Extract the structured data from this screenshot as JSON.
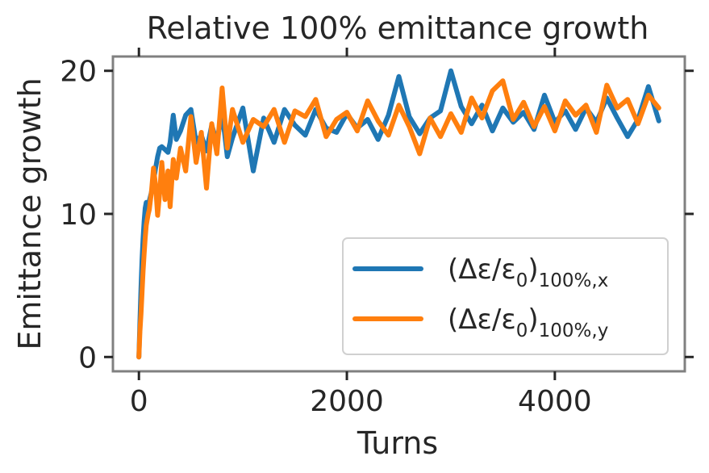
{
  "chart_data": {
    "type": "line",
    "title": "Relative 100% emittance growth",
    "xlabel": "Turns",
    "ylabel": "Emittance growth",
    "xlim": [
      -250,
      5250
    ],
    "ylim": [
      -1,
      21
    ],
    "xticks": [
      0,
      2000,
      4000
    ],
    "xtick_labels": [
      "0",
      "2000",
      "4000"
    ],
    "yticks": [
      0,
      10,
      20
    ],
    "ytick_labels": [
      "0",
      "10",
      "20"
    ],
    "grid": false,
    "legend_position": "lower-right",
    "series": [
      {
        "name": "(Δε/ε₀)100%,x",
        "label_main": "(Δε/ε",
        "label_sub0": "0",
        "label_close": ")",
        "label_sub": "100%,x",
        "color": "#1f77b4",
        "x": [
          0,
          10,
          20,
          30,
          40,
          50,
          60,
          70,
          80,
          90,
          100,
          120,
          140,
          160,
          180,
          200,
          220,
          250,
          280,
          300,
          330,
          360,
          400,
          450,
          500,
          550,
          600,
          650,
          700,
          750,
          800,
          850,
          900,
          1000,
          1100,
          1200,
          1300,
          1400,
          1500,
          1600,
          1700,
          1800,
          1900,
          2000,
          2100,
          2200,
          2300,
          2400,
          2500,
          2600,
          2700,
          2800,
          2900,
          3000,
          3100,
          3200,
          3300,
          3400,
          3500,
          3600,
          3700,
          3800,
          3900,
          4000,
          4100,
          4200,
          4300,
          4400,
          4500,
          4600,
          4700,
          4800,
          4900,
          5000
        ],
        "y": [
          0.0,
          2.5,
          4.8,
          6.8,
          8.3,
          9.5,
          10.4,
          10.8,
          10.7,
          10.6,
          10.9,
          11.5,
          12.3,
          13.2,
          14.0,
          14.6,
          14.7,
          14.5,
          14.3,
          15.0,
          16.9,
          15.2,
          15.8,
          16.9,
          17.3,
          15.0,
          15.5,
          14.4,
          16.2,
          15.0,
          17.1,
          14.0,
          15.3,
          17.4,
          13.0,
          16.7,
          15.0,
          17.3,
          16.2,
          15.5,
          17.3,
          16.0,
          15.7,
          17.0,
          16.0,
          16.6,
          15.2,
          16.9,
          19.6,
          16.8,
          15.6,
          16.7,
          17.2,
          20.0,
          17.5,
          16.3,
          17.6,
          15.8,
          17.4,
          16.4,
          17.1,
          15.9,
          18.3,
          16.4,
          17.2,
          15.9,
          17.4,
          16.4,
          18.1,
          16.7,
          15.4,
          16.6,
          18.9,
          16.5
        ]
      },
      {
        "name": "(Δε/ε₀)100%,y",
        "label_main": "(Δε/ε",
        "label_sub0": "0",
        "label_close": ")",
        "label_sub": "100%,y",
        "color": "#ff7f0e",
        "x": [
          0,
          10,
          20,
          30,
          40,
          50,
          60,
          70,
          80,
          90,
          100,
          120,
          140,
          160,
          180,
          200,
          220,
          250,
          280,
          300,
          330,
          360,
          400,
          450,
          500,
          550,
          600,
          650,
          700,
          750,
          800,
          850,
          900,
          1000,
          1100,
          1200,
          1300,
          1400,
          1500,
          1600,
          1700,
          1800,
          1900,
          2000,
          2100,
          2200,
          2300,
          2400,
          2500,
          2600,
          2700,
          2800,
          2900,
          3000,
          3100,
          3200,
          3300,
          3400,
          3500,
          3600,
          3700,
          3800,
          3900,
          4000,
          4100,
          4200,
          4300,
          4400,
          4500,
          4600,
          4700,
          4800,
          4900,
          5000
        ],
        "y": [
          0.0,
          1.8,
          3.0,
          4.5,
          6.0,
          7.2,
          8.3,
          9.2,
          9.6,
          10.0,
          10.3,
          11.5,
          13.2,
          12.0,
          9.9,
          11.5,
          13.6,
          11.0,
          13.0,
          10.5,
          13.8,
          12.5,
          14.6,
          13.0,
          16.8,
          13.6,
          15.7,
          11.8,
          16.3,
          14.2,
          18.8,
          14.6,
          17.3,
          15.0,
          16.6,
          16.1,
          17.3,
          15.0,
          17.2,
          16.8,
          18.0,
          15.4,
          16.6,
          17.1,
          15.8,
          17.9,
          16.5,
          15.5,
          17.6,
          16.1,
          14.2,
          16.7,
          15.4,
          17.0,
          15.7,
          18.1,
          16.7,
          18.6,
          19.3,
          16.6,
          17.8,
          16.1,
          17.5,
          15.8,
          17.9,
          16.9,
          17.6,
          15.7,
          19.0,
          17.4,
          18.0,
          16.3,
          18.3,
          17.4
        ]
      }
    ]
  }
}
